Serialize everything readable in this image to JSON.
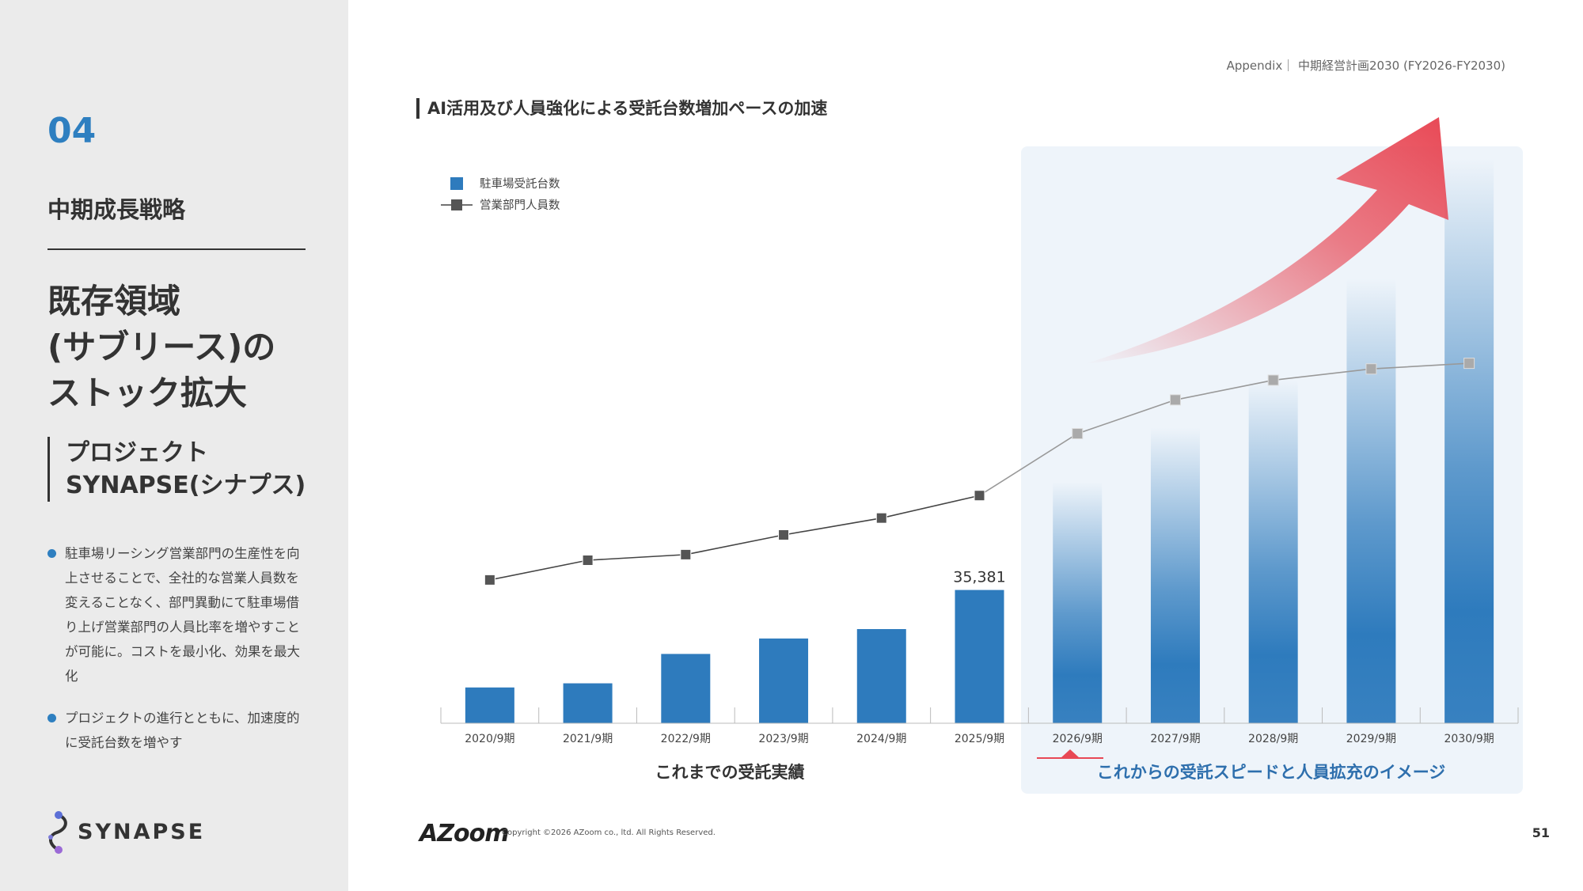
{
  "sidebar": {
    "section_number": "04",
    "section_title": "中期成長戦略",
    "main_title_lines": [
      "既存領域",
      "(サブリース)の",
      "ストック拡大"
    ],
    "project_lines": [
      "プロジェクト",
      "SYNAPSE(シナプス)"
    ],
    "bullets": [
      "駐車場リーシング営業部門の生産性を向上させることで、全社的な営業人員数を変えることなく、部門異動にて駐車場借り上げ営業部門の人員比率を増やすことが可能に。コストを最小化、効果を最大化",
      "プロジェクトの進行とともに、加速度的に受託台数を増やす"
    ],
    "logo_text": "SYNAPSE"
  },
  "header": {
    "reference": "Appendix｜ 中期経営計画2030 (FY2026-FY2030)"
  },
  "chart_heading": "AI活用及び人員強化による受託台数増加ペースの加速",
  "chart_data": {
    "type": "bar",
    "categories": [
      "2020/9期",
      "2021/9期",
      "2022/9期",
      "2023/9期",
      "2024/9期",
      "2025/9期",
      "2026/9期",
      "2027/9期",
      "2028/9期",
      "2029/9期",
      "2030/9期"
    ],
    "series": [
      {
        "name": "駐車場受託台数",
        "kind": "bar",
        "values": [
          9500,
          10600,
          18400,
          22500,
          25000,
          35381,
          64000,
          78500,
          91000,
          118000,
          150000
        ],
        "projected_from_index": 6
      },
      {
        "name": "営業部門人員数",
        "kind": "line",
        "marker": "square",
        "values": [
          47,
          54,
          56,
          63,
          69,
          77,
          99,
          111,
          118,
          122,
          124
        ],
        "projected_from_index": 6
      }
    ],
    "data_labels": [
      {
        "category": "2025/9期",
        "text": "35,381"
      }
    ],
    "region_labels": {
      "past": "これまでの受託実績",
      "future": "これからの受託スピードと人員拡充のイメージ"
    },
    "legend_position": "top-left",
    "colors": {
      "bar": "#2e7bbd",
      "line": "#444444",
      "projected_line": "#999999",
      "arrow": "#e84855",
      "future_bg": "#eef4fa",
      "future_label": "#2e6fad"
    },
    "grid": false
  },
  "footer": {
    "brand": "AZoom",
    "copyright": "Copyright ©2026 AZoom co., ltd. All Rights Reserved.",
    "page_number": "51"
  }
}
